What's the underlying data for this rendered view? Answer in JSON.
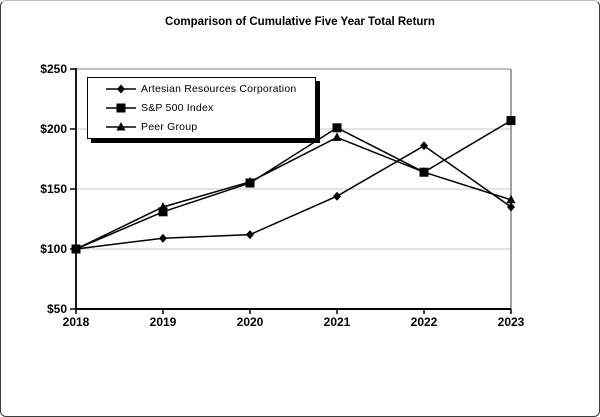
{
  "chart_data": {
    "type": "line",
    "title": "Comparison of Cumulative Five Year Total Return",
    "x": [
      "2018",
      "2019",
      "2020",
      "2021",
      "2022",
      "2023"
    ],
    "series": [
      {
        "name": "Artesian Resources Corporation",
        "marker": "diamond",
        "color": "#000000",
        "values": [
          100,
          109,
          112,
          144,
          186,
          135
        ]
      },
      {
        "name": "S&P 500 Index",
        "marker": "square",
        "color": "#000000",
        "values": [
          100,
          131,
          155,
          201,
          164,
          207
        ]
      },
      {
        "name": "Peer Group",
        "marker": "triangle",
        "color": "#000000",
        "values": [
          100,
          135,
          156,
          193,
          164,
          141
        ]
      }
    ],
    "xlabel": "",
    "ylabel": "",
    "ylim": [
      50,
      250
    ],
    "ytick_step": 50,
    "ytick_labels": [
      "$50",
      "$100",
      "$150",
      "$200",
      "$250"
    ],
    "xtick_labels": [
      "2018",
      "2019",
      "2020",
      "2021",
      "2022",
      "2023"
    ],
    "grid": "horizontal",
    "legend_position": "top-left",
    "colors": {
      "line": "#000000",
      "marker": "#000000",
      "grid": "#c8c8c8",
      "frame": "#808080",
      "axis": "#000000",
      "background": "#ffffff"
    }
  }
}
